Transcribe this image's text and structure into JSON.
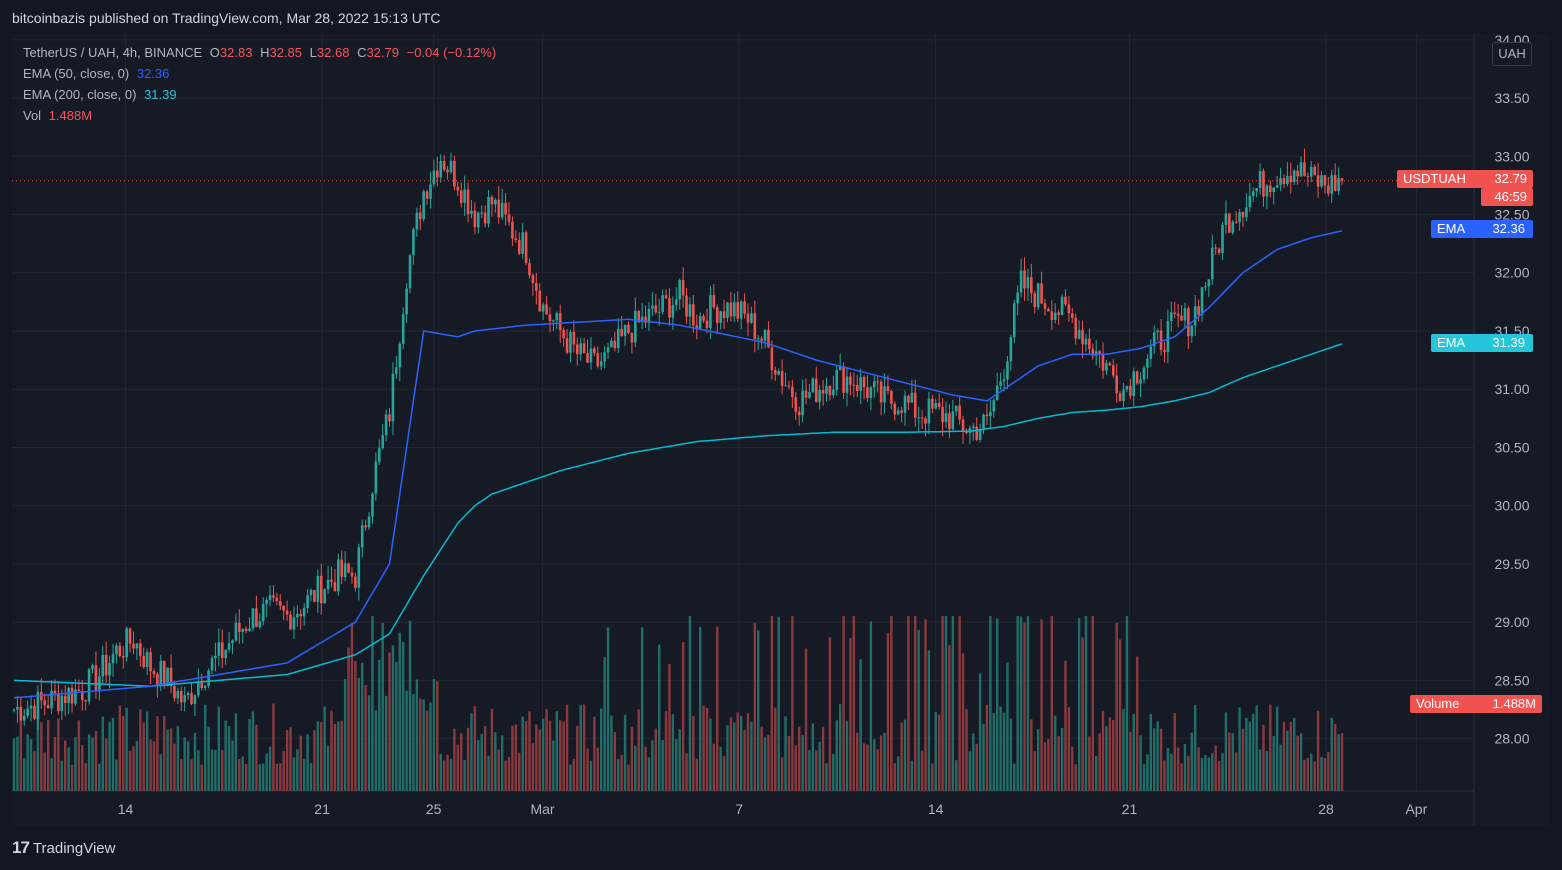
{
  "header": {
    "published": "bitcoinbazis published on TradingView.com, Mar 28, 2022 15:13 UTC"
  },
  "legend": {
    "symbol": "TetherUS / UAH, 4h, BINANCE",
    "o_label": "O",
    "o": "32.83",
    "h_label": "H",
    "h": "32.85",
    "l_label": "L",
    "l": "32.68",
    "c_label": "C",
    "c": "32.79",
    "change": "−0.04 (−0.12%)",
    "ema50_label": "EMA (50, close, 0)",
    "ema50_value": "32.36",
    "ema200_label": "EMA (200, close, 0)",
    "ema200_value": "31.39",
    "vol_label": "Vol",
    "vol_value": "1.488M"
  },
  "axis": {
    "unit": "UAH"
  },
  "tags": {
    "price_name": "USDTUAH",
    "price_value": "32.79",
    "countdown": "46:59",
    "ema50_name": "EMA",
    "ema50_value": "32.36",
    "ema200_name": "EMA",
    "ema200_value": "31.39",
    "volume_name": "Volume",
    "volume_value": "1.488M"
  },
  "footer": {
    "brand": "TradingView",
    "logo_glyph": "17"
  },
  "colors": {
    "up": "#26a69a",
    "down": "#ef5350",
    "ema50": "#2962ff",
    "ema200": "#00bcd4",
    "background": "#161a25",
    "grid": "#232632",
    "text": "#b2b5be"
  },
  "chart_data": {
    "type": "candlestick",
    "symbol": "USDTUAH",
    "timeframe": "4h",
    "ylim": [
      27.55,
      34.05
    ],
    "y_ticks": [
      "28.00",
      "28.50",
      "29.00",
      "29.50",
      "30.00",
      "30.50",
      "31.00",
      "31.50",
      "32.00",
      "32.50",
      "33.00",
      "33.50",
      "34.00"
    ],
    "x_ticks": [
      "14",
      "21",
      "25",
      "Mar",
      "7",
      "14",
      "21",
      "28",
      "Apr"
    ],
    "last_price": 32.79,
    "control_points": {
      "close": [
        [
          0,
          28.25
        ],
        [
          5,
          28.28
        ],
        [
          10,
          28.32
        ],
        [
          15,
          28.38
        ],
        [
          20,
          28.42
        ],
        [
          25,
          28.55
        ],
        [
          30,
          28.75
        ],
        [
          35,
          28.85
        ],
        [
          40,
          28.62
        ],
        [
          45,
          28.5
        ],
        [
          50,
          28.3
        ],
        [
          55,
          28.55
        ],
        [
          60,
          28.7
        ],
        [
          65,
          28.9
        ],
        [
          70,
          29.05
        ],
        [
          75,
          29.1
        ],
        [
          80,
          29.05
        ],
        [
          85,
          29.15
        ],
        [
          90,
          29.3
        ],
        [
          95,
          29.4
        ],
        [
          100,
          29.4
        ],
        [
          105,
          30.2
        ],
        [
          110,
          30.8
        ],
        [
          115,
          32.0
        ],
        [
          120,
          32.7
        ],
        [
          125,
          33.0
        ],
        [
          130,
          32.8
        ],
        [
          135,
          32.5
        ],
        [
          140,
          32.6
        ],
        [
          145,
          32.4
        ],
        [
          150,
          32.2
        ],
        [
          155,
          31.7
        ],
        [
          160,
          31.5
        ],
        [
          165,
          31.3
        ],
        [
          170,
          31.2
        ],
        [
          175,
          31.3
        ],
        [
          180,
          31.5
        ],
        [
          185,
          31.6
        ],
        [
          190,
          31.7
        ],
        [
          195,
          31.8
        ],
        [
          200,
          31.6
        ],
        [
          205,
          31.7
        ],
        [
          210,
          31.7
        ],
        [
          215,
          31.6
        ],
        [
          220,
          31.4
        ],
        [
          225,
          31.1
        ],
        [
          230,
          30.9
        ],
        [
          235,
          31.0
        ],
        [
          240,
          31.1
        ],
        [
          245,
          31.1
        ],
        [
          250,
          31.0
        ],
        [
          255,
          30.9
        ],
        [
          260,
          30.9
        ],
        [
          265,
          30.8
        ],
        [
          270,
          30.8
        ],
        [
          275,
          30.75
        ],
        [
          280,
          30.65
        ],
        [
          285,
          30.7
        ],
        [
          290,
          31.2
        ],
        [
          295,
          31.9
        ],
        [
          300,
          31.8
        ],
        [
          305,
          31.7
        ],
        [
          310,
          31.6
        ],
        [
          315,
          31.4
        ],
        [
          320,
          31.2
        ],
        [
          325,
          31.0
        ],
        [
          330,
          31.2
        ],
        [
          335,
          31.4
        ],
        [
          340,
          31.55
        ],
        [
          345,
          31.6
        ],
        [
          350,
          32.0
        ],
        [
          355,
          32.45
        ],
        [
          360,
          32.6
        ],
        [
          365,
          32.75
        ],
        [
          370,
          32.85
        ],
        [
          375,
          32.9
        ],
        [
          380,
          32.8
        ],
        [
          385,
          32.75
        ],
        [
          389,
          32.79
        ]
      ]
    },
    "ema50": {
      "x": [
        0,
        40,
        80,
        100,
        110,
        115,
        120,
        130,
        135,
        150,
        180,
        195,
        220,
        235,
        255,
        275,
        285,
        300,
        310,
        320,
        330,
        340,
        350,
        360,
        370,
        380,
        389
      ],
      "y": [
        28.35,
        28.45,
        28.65,
        29.0,
        29.5,
        30.5,
        31.5,
        31.45,
        31.5,
        31.55,
        31.6,
        31.55,
        31.4,
        31.25,
        31.1,
        30.95,
        30.9,
        31.2,
        31.3,
        31.3,
        31.35,
        31.45,
        31.7,
        32.0,
        32.2,
        32.3,
        32.36
      ]
    },
    "ema200": {
      "x": [
        0,
        40,
        80,
        100,
        110,
        120,
        130,
        135,
        140,
        160,
        180,
        200,
        220,
        240,
        260,
        280,
        290,
        300,
        310,
        320,
        330,
        340,
        350,
        360,
        370,
        380,
        389
      ],
      "y": [
        28.5,
        28.45,
        28.55,
        28.72,
        28.9,
        29.4,
        29.85,
        30.0,
        30.1,
        30.3,
        30.45,
        30.55,
        30.6,
        30.63,
        30.63,
        30.64,
        30.68,
        30.75,
        30.8,
        30.82,
        30.85,
        30.9,
        30.97,
        31.1,
        31.2,
        31.3,
        31.39
      ]
    },
    "volume": {
      "last": "1.488M"
    }
  }
}
